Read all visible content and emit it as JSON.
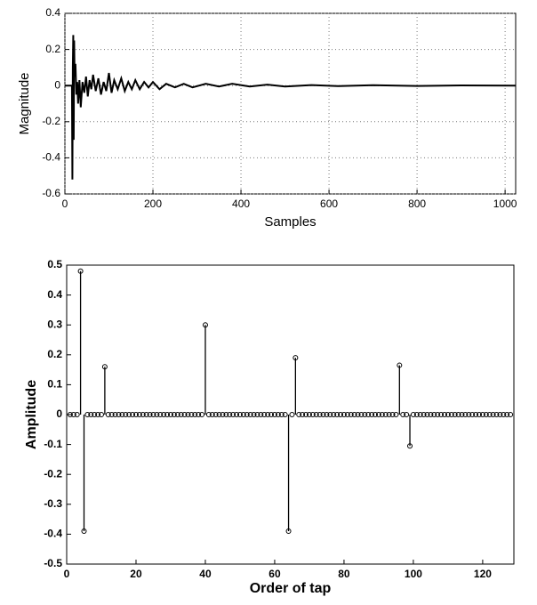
{
  "chart_data": [
    {
      "type": "line",
      "xlabel": "Samples",
      "ylabel": "Magnitude",
      "color": "#000000",
      "grid": true,
      "xlim": [
        0,
        1024
      ],
      "ylim": [
        -0.6,
        0.4
      ],
      "xticks": [
        0,
        200,
        400,
        600,
        800,
        1000
      ],
      "yticks": [
        -0.6,
        -0.4,
        -0.2,
        0,
        0.2,
        0.4
      ],
      "x": [
        0,
        16,
        17,
        18,
        19,
        20,
        21,
        22,
        24,
        26,
        28,
        30,
        33,
        36,
        40,
        44,
        48,
        52,
        56,
        60,
        64,
        70,
        76,
        82,
        88,
        94,
        100,
        106,
        112,
        120,
        128,
        136,
        144,
        152,
        160,
        170,
        180,
        190,
        200,
        215,
        230,
        250,
        270,
        290,
        320,
        350,
        380,
        420,
        460,
        500,
        560,
        620,
        700,
        800,
        900,
        1024
      ],
      "values": [
        0,
        0,
        -0.52,
        0.1,
        0.28,
        -0.3,
        0.25,
        0.05,
        0.12,
        -0.05,
        0.02,
        -0.1,
        0.03,
        -0.12,
        0.02,
        -0.04,
        0.05,
        -0.06,
        0.03,
        -0.02,
        0.06,
        -0.03,
        0.04,
        -0.05,
        0.02,
        -0.03,
        0.07,
        -0.04,
        0.03,
        -0.02,
        0.04,
        -0.03,
        0.02,
        -0.02,
        0.03,
        -0.02,
        0.02,
        -0.01,
        0.02,
        -0.02,
        0.01,
        -0.01,
        0.01,
        -0.01,
        0.01,
        -0.005,
        0.01,
        -0.005,
        0.005,
        -0.005,
        0.003,
        -0.003,
        0.002,
        -0.002,
        0.001,
        0
      ]
    },
    {
      "type": "stem",
      "xlabel": "Order of tap",
      "ylabel": "Amplitude",
      "color": "#000000",
      "grid": false,
      "xlim": [
        0,
        129
      ],
      "ylim": [
        -0.5,
        0.5
      ],
      "xticks": [
        0,
        20,
        40,
        60,
        80,
        100,
        120
      ],
      "yticks": [
        -0.5,
        -0.4,
        -0.3,
        -0.2,
        -0.1,
        0,
        0.1,
        0.2,
        0.3,
        0.4,
        0.5
      ],
      "x": [
        1,
        2,
        3,
        4,
        5,
        6,
        7,
        8,
        9,
        10,
        11,
        12,
        13,
        14,
        15,
        16,
        17,
        18,
        19,
        20,
        21,
        22,
        23,
        24,
        25,
        26,
        27,
        28,
        29,
        30,
        31,
        32,
        33,
        34,
        35,
        36,
        37,
        38,
        39,
        40,
        41,
        42,
        43,
        44,
        45,
        46,
        47,
        48,
        49,
        50,
        51,
        52,
        53,
        54,
        55,
        56,
        57,
        58,
        59,
        60,
        61,
        62,
        63,
        64,
        65,
        66,
        67,
        68,
        69,
        70,
        71,
        72,
        73,
        74,
        75,
        76,
        77,
        78,
        79,
        80,
        81,
        82,
        83,
        84,
        85,
        86,
        87,
        88,
        89,
        90,
        91,
        92,
        93,
        94,
        95,
        96,
        97,
        98,
        99,
        100,
        101,
        102,
        103,
        104,
        105,
        106,
        107,
        108,
        109,
        110,
        111,
        112,
        113,
        114,
        115,
        116,
        117,
        118,
        119,
        120,
        121,
        122,
        123,
        124,
        125,
        126,
        127,
        128
      ],
      "values": [
        0,
        0,
        0,
        0.48,
        -0.39,
        0,
        0,
        0,
        0,
        0,
        0.16,
        0,
        0,
        0,
        0,
        0,
        0,
        0,
        0,
        0,
        0,
        0,
        0,
        0,
        0,
        0,
        0,
        0,
        0,
        0,
        0,
        0,
        0,
        0,
        0,
        0,
        0,
        0,
        0,
        0.3,
        0,
        0,
        0,
        0,
        0,
        0,
        0,
        0,
        0,
        0,
        0,
        0,
        0,
        0,
        0,
        0,
        0,
        0,
        0,
        0,
        0,
        0,
        0,
        -0.39,
        0,
        0.19,
        0,
        0,
        0,
        0,
        0,
        0,
        0,
        0,
        0,
        0,
        0,
        0,
        0,
        0,
        0,
        0,
        0,
        0,
        0,
        0,
        0,
        0,
        0,
        0,
        0,
        0,
        0,
        0,
        0,
        0.165,
        0,
        0,
        -0.105,
        0,
        0,
        0,
        0,
        0,
        0,
        0,
        0,
        0,
        0,
        0,
        0,
        0,
        0,
        0,
        0,
        0,
        0,
        0,
        0,
        0,
        0,
        0,
        0,
        0,
        0,
        0,
        0,
        0
      ]
    }
  ]
}
